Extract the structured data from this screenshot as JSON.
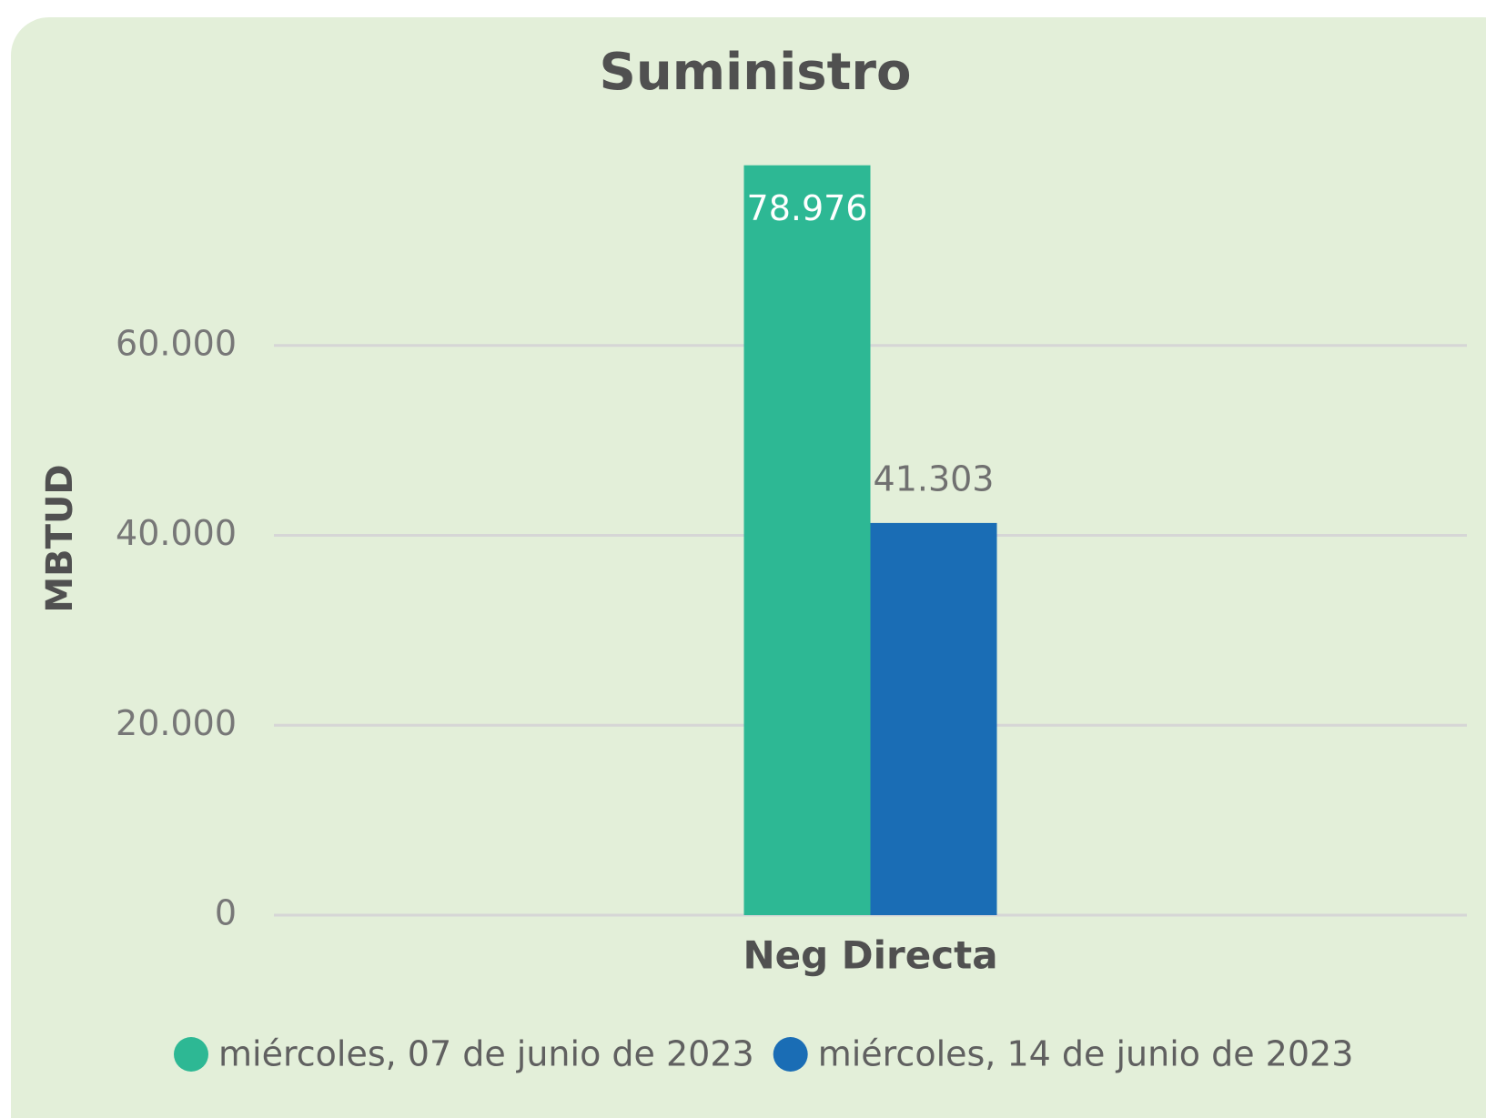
{
  "chart_data": {
    "type": "bar",
    "title": "Suministro",
    "y_label": "MBTUD",
    "categories": [
      "Neg Directa"
    ],
    "series": [
      {
        "name": "miércoles, 07 de junio de 2023",
        "color": "#2db894",
        "values": [
          78976
        ],
        "value_labels": [
          "78.976"
        ]
      },
      {
        "name": "miércoles, 14 de junio de 2023",
        "color": "#1a6db5",
        "values": [
          41303
        ],
        "value_labels": [
          "41.303"
        ]
      }
    ],
    "ylim": [
      0,
      80000
    ],
    "yticks": [
      0,
      {
        "value": 20000,
        "label": "20.000"
      },
      {
        "value": 40000,
        "label": "40.000"
      },
      {
        "value": 60000,
        "label": "60.000"
      }
    ],
    "grid": true,
    "legend": "bottom"
  }
}
